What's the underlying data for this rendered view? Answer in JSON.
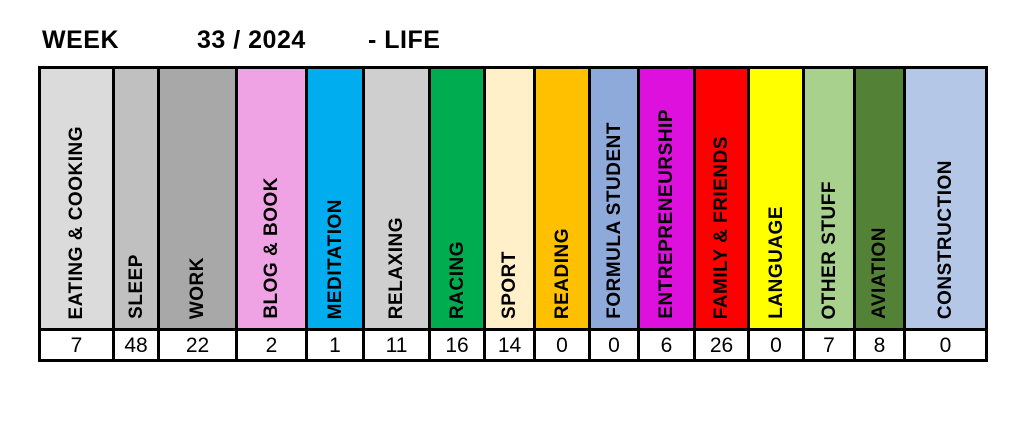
{
  "title": {
    "week_label": "WEEK",
    "week_value": "33 / 2024",
    "suffix": "- LIFE"
  },
  "chart_data": {
    "type": "table",
    "title": "WEEK 33 / 2024 - LIFE",
    "categories": [
      "EATING & COOKING",
      "SLEEP",
      "WORK",
      "BLOG & BOOK",
      "MEDITATION",
      "RELAXING",
      "RACING",
      "SPORT",
      "READING",
      "FORMULA STUDENT",
      "ENTREPRENEURSHIP",
      "FAMILY & FRIENDS",
      "LANGUAGE",
      "OTHER STUFF",
      "AVIATION",
      "CONSTRUCTION"
    ],
    "values": [
      7,
      48,
      22,
      2,
      1,
      11,
      16,
      14,
      0,
      0,
      6,
      26,
      0,
      7,
      8,
      0
    ],
    "colors": [
      "#DBDBDB",
      "#C0C0C0",
      "#A8A8A8",
      "#F0A3E4",
      "#00AEEF",
      "#CFCFCF",
      "#00AC50",
      "#FFF0C9",
      "#FFC000",
      "#8EAADB",
      "#DE10DE",
      "#FE0000",
      "#FFFF00",
      "#A9D18E",
      "#538135",
      "#B4C7E7"
    ],
    "layout": {
      "grid": false,
      "legend": false,
      "label_orientation": "vertical",
      "border_color": "#000000",
      "value_row_background": "#FFFFFF"
    }
  },
  "columns": [
    {
      "label": "EATING & COOKING",
      "value": 7,
      "color": "#DBDBDB"
    },
    {
      "label": "SLEEP",
      "value": 48,
      "color": "#C0C0C0"
    },
    {
      "label": "WORK",
      "value": 22,
      "color": "#A8A8A8"
    },
    {
      "label": "BLOG & BOOK",
      "value": 2,
      "color": "#F0A3E4"
    },
    {
      "label": "MEDITATION",
      "value": 1,
      "color": "#00AEEF"
    },
    {
      "label": "RELAXING",
      "value": 11,
      "color": "#CFCFCF"
    },
    {
      "label": "RACING",
      "value": 16,
      "color": "#00AC50"
    },
    {
      "label": "SPORT",
      "value": 14,
      "color": "#FFF0C9"
    },
    {
      "label": "READING",
      "value": 0,
      "color": "#FFC000"
    },
    {
      "label": "FORMULA STUDENT",
      "value": 0,
      "color": "#8EAADB"
    },
    {
      "label": "ENTREPRENEURSHIP",
      "value": 6,
      "color": "#DE10DE"
    },
    {
      "label": "FAMILY & FRIENDS",
      "value": 26,
      "color": "#FE0000"
    },
    {
      "label": "LANGUAGE",
      "value": 0,
      "color": "#FFFF00"
    },
    {
      "label": "OTHER STUFF",
      "value": 7,
      "color": "#A9D18E"
    },
    {
      "label": "AVIATION",
      "value": 8,
      "color": "#538135"
    },
    {
      "label": "CONSTRUCTION",
      "value": 0,
      "color": "#B4C7E7"
    }
  ]
}
